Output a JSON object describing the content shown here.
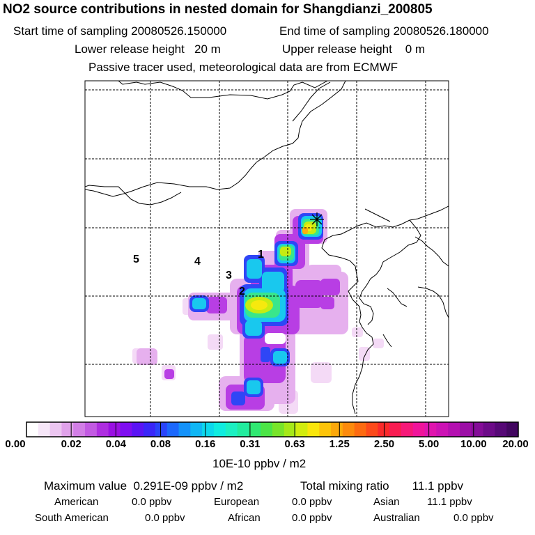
{
  "header": {
    "title": "NO2 source contributions in nested domain for Shangdianzi_200805",
    "start_time": "Start time of sampling 20080526.150000",
    "end_time": "End time of sampling 20080526.180000",
    "lower_height": "Lower release height   20 m",
    "upper_height": "Upper release height    0 m",
    "info": "Passive tracer used, meteorological data are from ECMWF"
  },
  "map": {
    "region_labels": [
      "1",
      "2",
      "3",
      "4",
      "5"
    ],
    "station_marker": "star-marker"
  },
  "colorbar": {
    "tick_labels": [
      "0.00",
      "0.02",
      "0.04",
      "0.08",
      "0.16",
      "0.31",
      "0.63",
      "1.25",
      "2.50",
      "5.00",
      "10.00",
      "20.00"
    ],
    "unit": "10E-10 ppbv / m2",
    "colors": [
      "#ffffff",
      "#f6e6f8",
      "#ecc6f1",
      "#e0a2ea",
      "#d27ee6",
      "#c25ae2",
      "#ae2ee0",
      "#9a10e2",
      "#7e0ef0",
      "#5a14f4",
      "#3a26f8",
      "#2a44fa",
      "#1c68fc",
      "#1492fa",
      "#10b6f4",
      "#0cd8ec",
      "#10ece0",
      "#1cf0c2",
      "#22ec9e",
      "#30e872",
      "#4ce446",
      "#78e42a",
      "#a6e818",
      "#d2ec0e",
      "#fae60c",
      "#fcc40a",
      "#fca80a",
      "#fc8a0c",
      "#fc6a10",
      "#fc4a1a",
      "#fa2a2a",
      "#f81c52",
      "#f61878",
      "#f0149a",
      "#e014ae",
      "#cc12b4",
      "#b410b0",
      "#9c0ea6",
      "#840c98",
      "#6c0a88",
      "#560876",
      "#420660"
    ]
  },
  "footer": {
    "max_value": "Maximum value  0.291E-09 ppbv / m2",
    "total": "Total mixing ratio       11.1 ppbv",
    "american_label": "American",
    "american_value": "0.0 ppbv",
    "european_label": "European",
    "european_value": "0.0 ppbv",
    "asian_label": "Asian",
    "asian_value": "11.1 ppbv",
    "south_american_label": "South American",
    "south_american_value": "0.0 ppbv",
    "african_label": "African",
    "african_value": "0.0 ppbv",
    "australian_label": "Australian",
    "australian_value": "0.0 ppbv"
  }
}
